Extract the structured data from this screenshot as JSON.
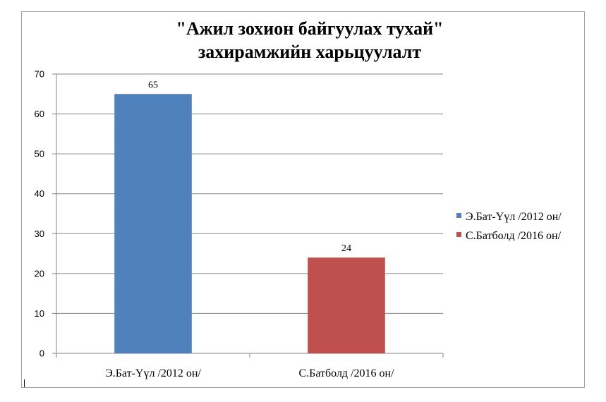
{
  "chart_data": {
    "type": "bar",
    "title_lines": [
      "\"Ажил зохион байгуулах тухай\"",
      "захирамжийн харьцуулалт"
    ],
    "categories": [
      "Э.Бат-Үүл /2012 он/",
      "С.Батболд /2016 он/"
    ],
    "values": [
      65,
      24
    ],
    "colors": [
      "#4f81bd",
      "#c0504d"
    ],
    "ylim": [
      0,
      70
    ],
    "yticks": [
      "0",
      "10",
      "20",
      "30",
      "40",
      "50",
      "60",
      "70"
    ],
    "grid": true,
    "legend_position": "right",
    "legend": [
      {
        "label": "Э.Бат-Үүл /2012 он/",
        "color": "#4f81bd"
      },
      {
        "label": "С.Батболд /2016 он/",
        "color": "#c0504d"
      }
    ]
  }
}
